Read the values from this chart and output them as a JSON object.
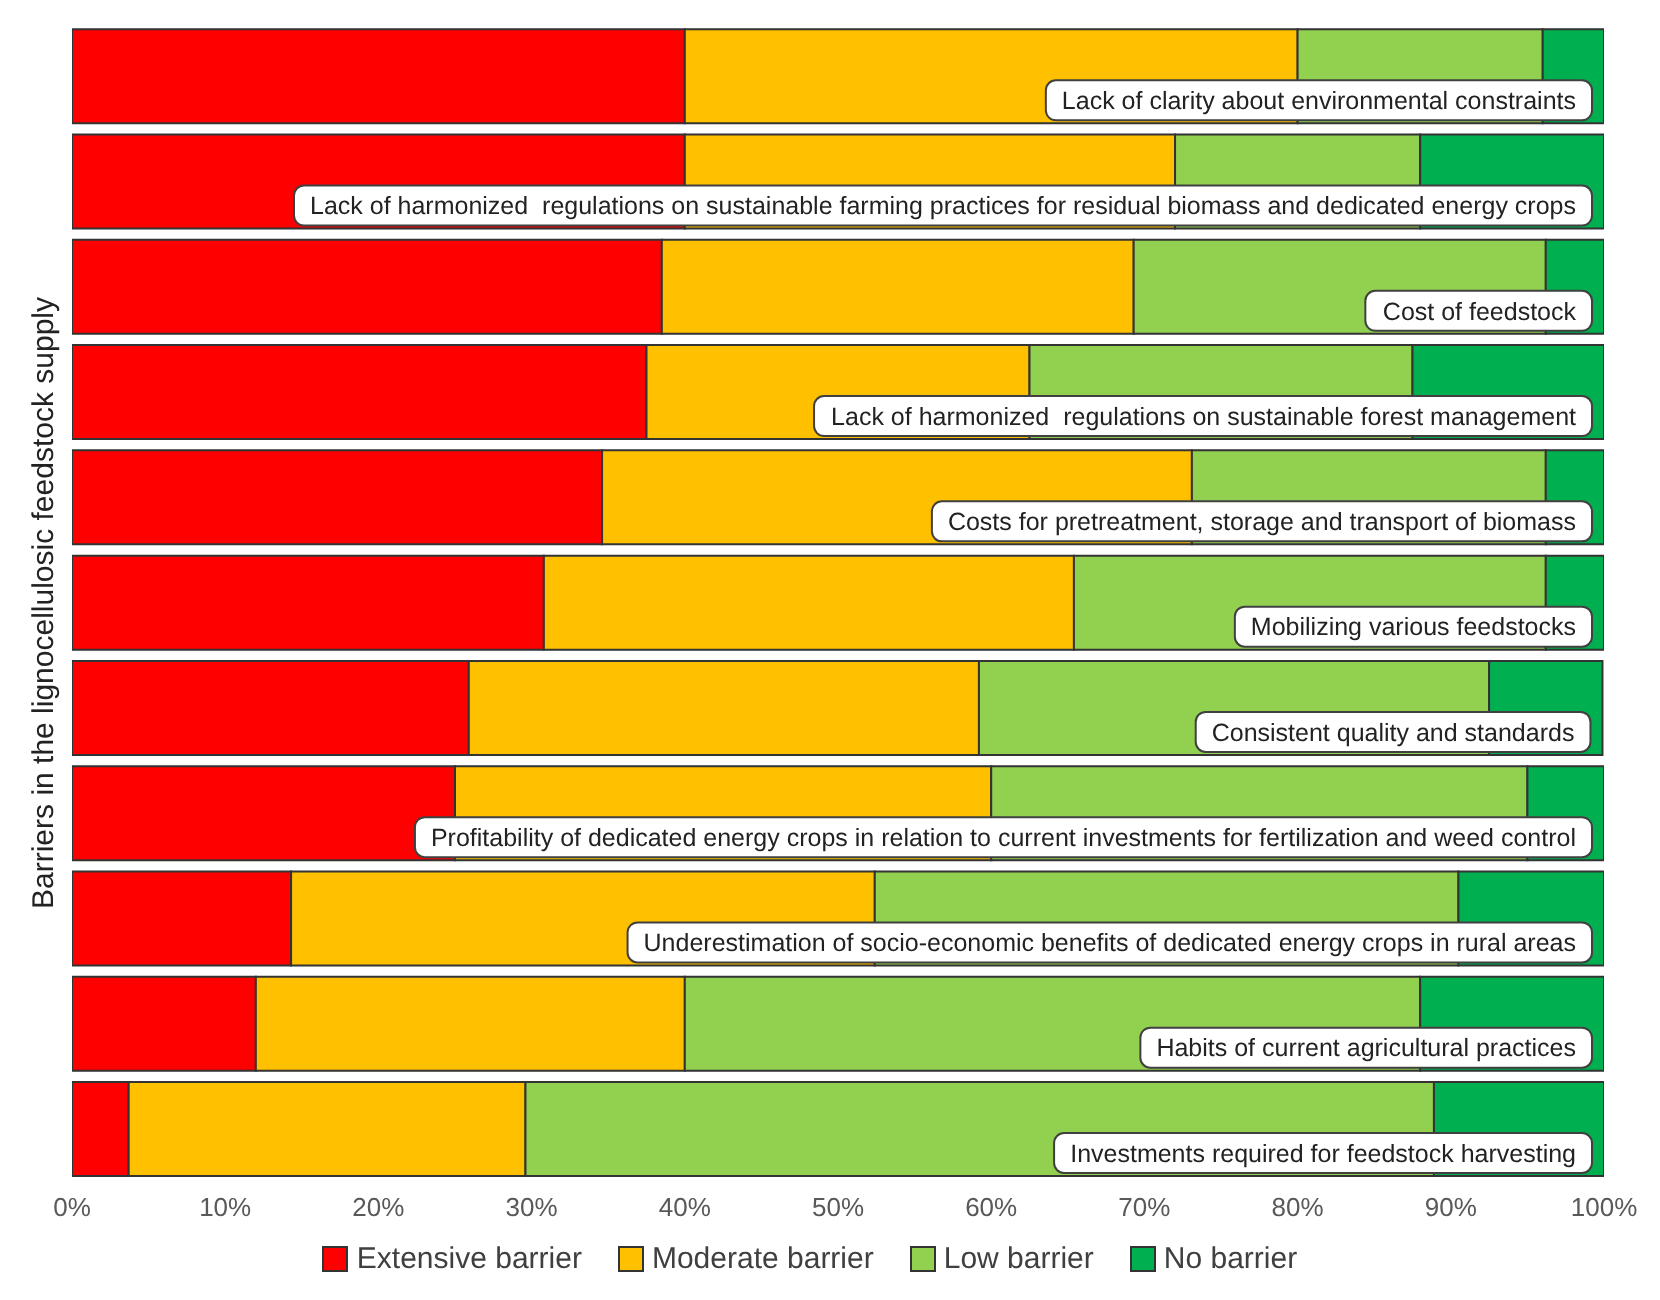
{
  "chart_data": {
    "type": "bar",
    "orientation": "horizontal",
    "stacked": true,
    "ylabel": "Barriers in the lignocellulosic feedstock supply",
    "categories": [
      "Lack of clarity about environmental constraints",
      "Lack of harmonized  regulations on sustainable farming practices for residual biomass and dedicated energy crops",
      "Cost of feedstock",
      "Lack of harmonized  regulations on sustainable forest management",
      "Costs for pretreatment, storage and transport of biomass",
      "Mobilizing various feedstocks",
      "Consistent quality and standards",
      "Profitability of dedicated energy crops in relation to current investments for fertilization and weed control",
      "Underestimation of socio-economic benefits of dedicated energy crops in rural areas",
      "Habits of current agricultural practices",
      "Investments required for feedstock harvesting"
    ],
    "series": [
      {
        "name": "Extensive barrier",
        "color": "#ff0000",
        "values": [
          40,
          40,
          38.5,
          37.5,
          34.6,
          30.8,
          25.9,
          25,
          14.3,
          12,
          3.7
        ]
      },
      {
        "name": "Moderate barrier",
        "color": "#ffc000",
        "values": [
          40,
          32,
          30.8,
          25,
          38.5,
          34.6,
          33.3,
          35,
          38.1,
          28,
          25.9
        ]
      },
      {
        "name": "Low barrier",
        "color": "#92d050",
        "values": [
          16,
          16,
          26.9,
          25,
          23.1,
          30.8,
          33.3,
          35,
          38.1,
          48,
          59.3
        ]
      },
      {
        "name": "No barrier",
        "color": "#00b050",
        "values": [
          4,
          12,
          3.8,
          12.5,
          3.8,
          3.8,
          7.4,
          5,
          9.5,
          12,
          11.1
        ]
      }
    ],
    "xlim": [
      0,
      100
    ],
    "xticks": [
      {
        "value": 0,
        "label": "0%"
      },
      {
        "value": 10,
        "label": "10%"
      },
      {
        "value": 20,
        "label": "20%"
      },
      {
        "value": 30,
        "label": "30%"
      },
      {
        "value": 40,
        "label": "40%"
      },
      {
        "value": 50,
        "label": "50%"
      },
      {
        "value": 60,
        "label": "60%"
      },
      {
        "value": 70,
        "label": "70%"
      },
      {
        "value": 80,
        "label": "80%"
      },
      {
        "value": 90,
        "label": "90%"
      },
      {
        "value": 100,
        "label": "100%"
      }
    ],
    "grid": false,
    "legend": "bottom",
    "tick_labels": "x"
  }
}
